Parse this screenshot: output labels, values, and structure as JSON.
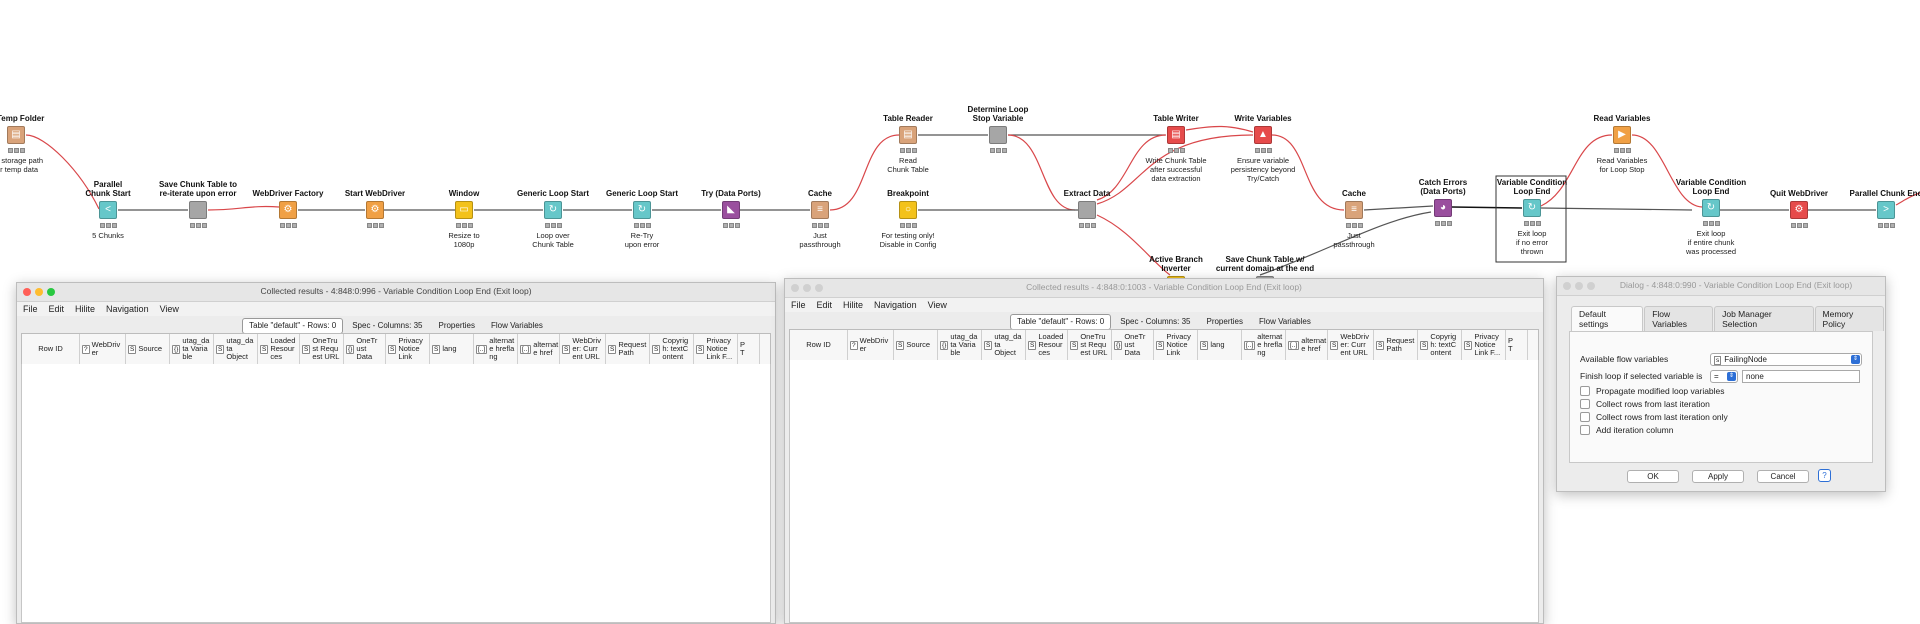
{
  "nodes": [
    {
      "key": "create_temp",
      "title": "te Temp Folder",
      "desc": "ate storage path\nfor temp data",
      "color": "#d9a37a",
      "glyph": "▤"
    },
    {
      "key": "parallel_start",
      "title": "Parallel\nChunk Start",
      "desc": "5 Chunks",
      "color": "#66c7c9",
      "glyph": "<"
    },
    {
      "key": "save_chunk",
      "title": "Save Chunk Table to\nre-iterate upon error",
      "desc": "",
      "color": "#a6a6a6",
      "glyph": ""
    },
    {
      "key": "wd_factory",
      "title": "WebDriver Factory",
      "desc": "",
      "color": "#f0a045",
      "glyph": "⚙"
    },
    {
      "key": "start_wd",
      "title": "Start WebDriver",
      "desc": "",
      "color": "#f0a045",
      "glyph": "⚙"
    },
    {
      "key": "window",
      "title": "Window",
      "desc": "Resize to\n1080p",
      "color": "#f3c21b",
      "glyph": "▭"
    },
    {
      "key": "gls1",
      "title": "Generic Loop Start",
      "desc": "Loop over\nChunk Table",
      "color": "#66c7c9",
      "glyph": "↻"
    },
    {
      "key": "gls2",
      "title": "Generic Loop Start",
      "desc": "Re-Try\nupon error",
      "color": "#66c7c9",
      "glyph": "↻"
    },
    {
      "key": "try",
      "title": "Try (Data Ports)",
      "desc": "",
      "color": "#9a4f9e",
      "glyph": "◣"
    },
    {
      "key": "cache1",
      "title": "Cache",
      "desc": "Just\npassthrough",
      "color": "#d9a37a",
      "glyph": "≡"
    },
    {
      "key": "table_reader",
      "title": "Table Reader",
      "desc": "Read\nChunk Table",
      "color": "#d9a37a",
      "glyph": "▤"
    },
    {
      "key": "breakpoint",
      "title": "Breakpoint",
      "desc": "For testing only!\nDisable in Config",
      "color": "#f3c21b",
      "glyph": "○"
    },
    {
      "key": "determine",
      "title": "Determine Loop\nStop Variable",
      "desc": "",
      "color": "#a6a6a6",
      "glyph": ""
    },
    {
      "key": "extract",
      "title": "Extract Data",
      "desc": "",
      "color": "#a6a6a6",
      "glyph": ""
    },
    {
      "key": "table_writer",
      "title": "Table Writer",
      "desc": "Write Chunk Table\nafter successful\ndata extraction",
      "color": "#e64b4b",
      "glyph": "▤"
    },
    {
      "key": "write_vars",
      "title": "Write Variables",
      "desc": "Ensure variable\npersistency beyond\nTry/Catch",
      "color": "#e64b4b",
      "glyph": "▲"
    },
    {
      "key": "active_branch",
      "title": "Active Branch\nInverter",
      "desc": "",
      "color": "#f3c21b",
      "glyph": ""
    },
    {
      "key": "save_chunk2",
      "title": "Save Chunk Table w/\ncurrent domain at the end",
      "desc": "",
      "color": "#a6a6a6",
      "glyph": ""
    },
    {
      "key": "cache2",
      "title": "Cache",
      "desc": "Just\npassthrough",
      "color": "#d9a37a",
      "glyph": "≡"
    },
    {
      "key": "catch",
      "title": "Catch Errors\n(Data Ports)",
      "desc": "",
      "color": "#9a4f9e",
      "glyph": "◕"
    },
    {
      "key": "vcle1",
      "title": "Variable Condition\nLoop End",
      "desc": "Exit loop\nif no error\nthrown",
      "color": "#66c7c9",
      "glyph": "↻"
    },
    {
      "key": "read_vars",
      "title": "Read Variables",
      "desc": "Read Variables\nfor Loop Stop",
      "color": "#f0a045",
      "glyph": "▶"
    },
    {
      "key": "vcle2",
      "title": "Variable Condition\nLoop End",
      "desc": "Exit loop\nif entire chunk\nwas processed",
      "color": "#66c7c9",
      "glyph": "↻"
    },
    {
      "key": "quit_wd",
      "title": "Quit WebDriver",
      "desc": "",
      "color": "#e64b4b",
      "glyph": "⚙"
    },
    {
      "key": "parallel_end",
      "title": "Parallel Chunk End",
      "desc": "",
      "color": "#66c7c9",
      "glyph": ">"
    }
  ],
  "win1": {
    "title": "Collected results - 4:848:0:996 - Variable Condition Loop End (Exit loop)",
    "menu": [
      "File",
      "Edit",
      "Hilite",
      "Navigation",
      "View"
    ],
    "tabs": [
      "Table \"default\" - Rows: 0",
      "Spec - Columns: 35",
      "Properties",
      "Flow Variables"
    ],
    "columns": [
      {
        "type": "",
        "label": "Row ID"
      },
      {
        "type": "?",
        "label": "WebDriv\ner"
      },
      {
        "type": "S",
        "label": "Source"
      },
      {
        "type": "{}",
        "label": "utag_da\nta Varia\nble"
      },
      {
        "type": "S",
        "label": "utag_da\nta Object"
      },
      {
        "type": "S",
        "label": "Loaded\nResour\nces"
      },
      {
        "type": "S",
        "label": "OneTru\nst Requ\nest URL"
      },
      {
        "type": "{}",
        "label": "OneTr\nust Data"
      },
      {
        "type": "S",
        "label": "Privacy\nNotice\nLink"
      },
      {
        "type": "S",
        "label": "lang"
      },
      {
        "type": "[..]",
        "label": "alternat\ne hrefla\nng"
      },
      {
        "type": "[..]",
        "label": "alternat\ne href"
      },
      {
        "type": "S",
        "label": "WebDriv\ner: Curr\nent URL"
      },
      {
        "type": "S",
        "label": "Request\nPath"
      },
      {
        "type": "S",
        "label": "Copyrig\nh: textC\nontent"
      },
      {
        "type": "S",
        "label": "Privacy\nNotice\nLink F..."
      },
      {
        "type": "",
        "label": "P\nT"
      }
    ]
  },
  "win2": {
    "title": "Collected results - 4:848:0:1003 - Variable Condition Loop End (Exit loop)",
    "menu": [
      "File",
      "Edit",
      "Hilite",
      "Navigation",
      "View"
    ],
    "tabs": [
      "Table \"default\" - Rows: 0",
      "Spec - Columns: 35",
      "Properties",
      "Flow Variables"
    ],
    "columns": [
      {
        "type": "",
        "label": "Row ID"
      },
      {
        "type": "?",
        "label": "WebDriv\ner"
      },
      {
        "type": "S",
        "label": "Source"
      },
      {
        "type": "{}",
        "label": "utag_da\nta Varia\nble"
      },
      {
        "type": "S",
        "label": "utag_da\nta Object"
      },
      {
        "type": "S",
        "label": "Loaded\nResour\nces"
      },
      {
        "type": "S",
        "label": "OneTru\nst Requ\nest URL"
      },
      {
        "type": "{}",
        "label": "OneTr\nust Data"
      },
      {
        "type": "S",
        "label": "Privacy\nNotice\nLink"
      },
      {
        "type": "S",
        "label": "lang"
      },
      {
        "type": "[..]",
        "label": "alternat\ne hrefla\nng"
      },
      {
        "type": "[..]",
        "label": "alternat\ne href"
      },
      {
        "type": "S",
        "label": "WebDriv\ner: Curr\nent URL"
      },
      {
        "type": "S",
        "label": "Request\nPath"
      },
      {
        "type": "S",
        "label": "Copyrig\nh: textC\nontent"
      },
      {
        "type": "S",
        "label": "Privacy\nNotice\nLink F..."
      },
      {
        "type": "",
        "label": "P\nT"
      }
    ]
  },
  "dialog": {
    "title": "Dialog - 4:848:0:990 - Variable Condition Loop End (Exit loop)",
    "tabs": [
      "Default settings",
      "Flow Variables",
      "Job Manager Selection",
      "Memory Policy"
    ],
    "available_label": "Available flow variables",
    "available_value": "FailingNode",
    "available_type": "s",
    "finish_label": "Finish loop if selected variable is",
    "operator": "=",
    "compare_value": "none",
    "checkboxes": [
      "Propagate modified loop variables",
      "Collect rows from last iteration",
      "Collect rows from last iteration only",
      "Add iteration column"
    ],
    "ok": "OK",
    "apply": "Apply",
    "cancel": "Cancel",
    "help": "?"
  },
  "colors": {
    "connection_red": "#d9474a",
    "connection_gray": "#555555",
    "close": "#ff5f57",
    "minimize": "#febc2e",
    "zoom": "#28c840"
  }
}
